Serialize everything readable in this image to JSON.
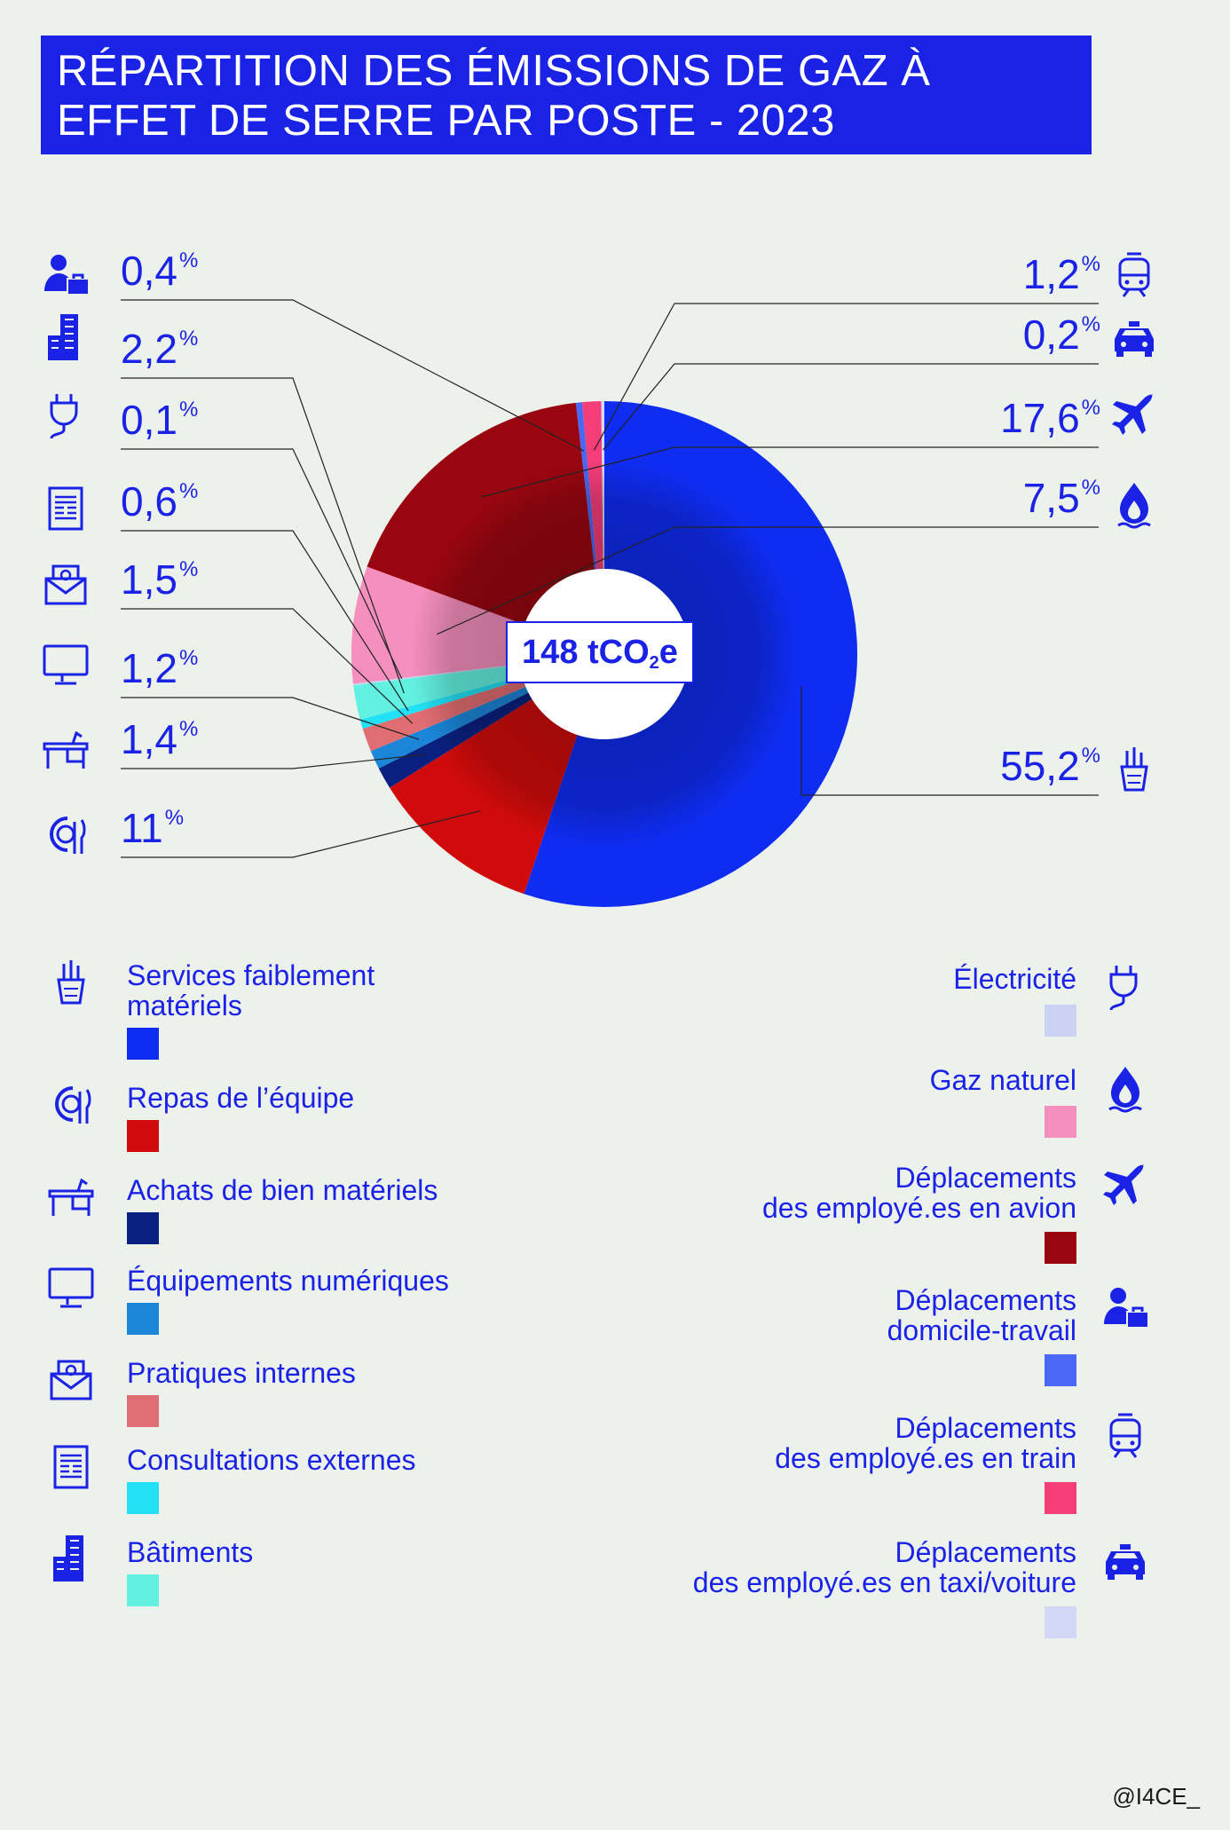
{
  "title": "RÉPARTITION DES ÉMISSIONS DE GAZ À EFFET DE SERRE PAR POSTE - 2023",
  "center": {
    "prefix": "148 tCO",
    "sub": "2",
    "suffix": "e"
  },
  "credit": "@I4CE_",
  "chart_data": {
    "type": "pie",
    "variant": "donut",
    "title": "RÉPARTITION DES ÉMISSIONS DE GAZ À EFFET DE SERRE PAR POSTE - 2023",
    "total": "148 tCO2e",
    "unit": "%",
    "slices": [
      {
        "name": "Services faiblement matériels",
        "value": 55.2,
        "label": "55,2",
        "color": "#0f2cf2",
        "icon": "pencil-cup-icon"
      },
      {
        "name": "Repas de l’équipe",
        "value": 11,
        "label": "11",
        "color": "#d10b0b",
        "icon": "plate-cutlery-icon"
      },
      {
        "name": "Achats de bien matériels",
        "value": 1.4,
        "label": "1,4",
        "color": "#0a2080",
        "icon": "desk-icon"
      },
      {
        "name": "Équipements numériques",
        "value": 1.2,
        "label": "1,2",
        "color": "#1b86d8",
        "icon": "monitor-icon"
      },
      {
        "name": "Pratiques internes",
        "value": 1.5,
        "label": "1,5",
        "color": "#e06d72",
        "icon": "email-icon"
      },
      {
        "name": "Consultations externes",
        "value": 0.6,
        "label": "0,6",
        "color": "#22e0f5",
        "icon": "document-icon"
      },
      {
        "name": "Bâtiments",
        "value": 2.2,
        "label": "2,2",
        "color": "#62f0e0",
        "icon": "building-icon"
      },
      {
        "name": "Électricité",
        "value": 0.1,
        "label": "0,1",
        "color": "#cbd3f4",
        "icon": "plug-icon"
      },
      {
        "name": "Gaz naturel",
        "value": 7.5,
        "label": "7,5",
        "color": "#f58fbd",
        "icon": "flame-icon"
      },
      {
        "name": "Déplacements des employé.es en avion",
        "value": 17.6,
        "label": "17,6",
        "color": "#9a0610",
        "icon": "airplane-icon"
      },
      {
        "name": "Déplacements domicile-travail",
        "value": 0.4,
        "label": "0,4",
        "color": "#4a68f5",
        "icon": "commuter-icon"
      },
      {
        "name": "Déplacements des employé.es en train",
        "value": 1.2,
        "label": "1,2",
        "color": "#f53d7a",
        "icon": "train-icon"
      },
      {
        "name": "Déplacements des employé.es en taxi/voiture",
        "value": 0.2,
        "label": "0,2",
        "color": "#d2d8f5",
        "icon": "car-icon"
      }
    ]
  },
  "legend": {
    "left": [
      {
        "label": "Services faiblement matériels",
        "color": "#0f2cf2",
        "icon": "pencil-cup-icon"
      },
      {
        "label": "Repas de l’équipe",
        "color": "#d10b0b",
        "icon": "plate-cutlery-icon"
      },
      {
        "label": "Achats de bien matériels",
        "color": "#0a2080",
        "icon": "desk-icon"
      },
      {
        "label": "Équipements numériques",
        "color": "#1b86d8",
        "icon": "monitor-icon"
      },
      {
        "label": "Pratiques internes",
        "color": "#e06d72",
        "icon": "email-icon"
      },
      {
        "label": "Consultations externes",
        "color": "#22e0f5",
        "icon": "document-icon"
      },
      {
        "label": "Bâtiments",
        "color": "#62f0e0",
        "icon": "building-icon"
      }
    ],
    "right": [
      {
        "label": "Électricité",
        "color": "#cbd3f4",
        "icon": "plug-icon"
      },
      {
        "label": "Gaz naturel",
        "color": "#f58fbd",
        "icon": "flame-icon"
      },
      {
        "label": "Déplacements\ndes employé.es en avion",
        "color": "#9a0610",
        "icon": "airplane-icon"
      },
      {
        "label": "Déplacements\ndomicile-travail",
        "color": "#4a68f5",
        "icon": "commuter-icon"
      },
      {
        "label": "Déplacements\ndes employé.es en train",
        "color": "#f53d7a",
        "icon": "train-icon"
      },
      {
        "label": "Déplacements\ndes employé.es en taxi/voiture",
        "color": "#d2d8f5",
        "icon": "car-icon"
      }
    ]
  }
}
